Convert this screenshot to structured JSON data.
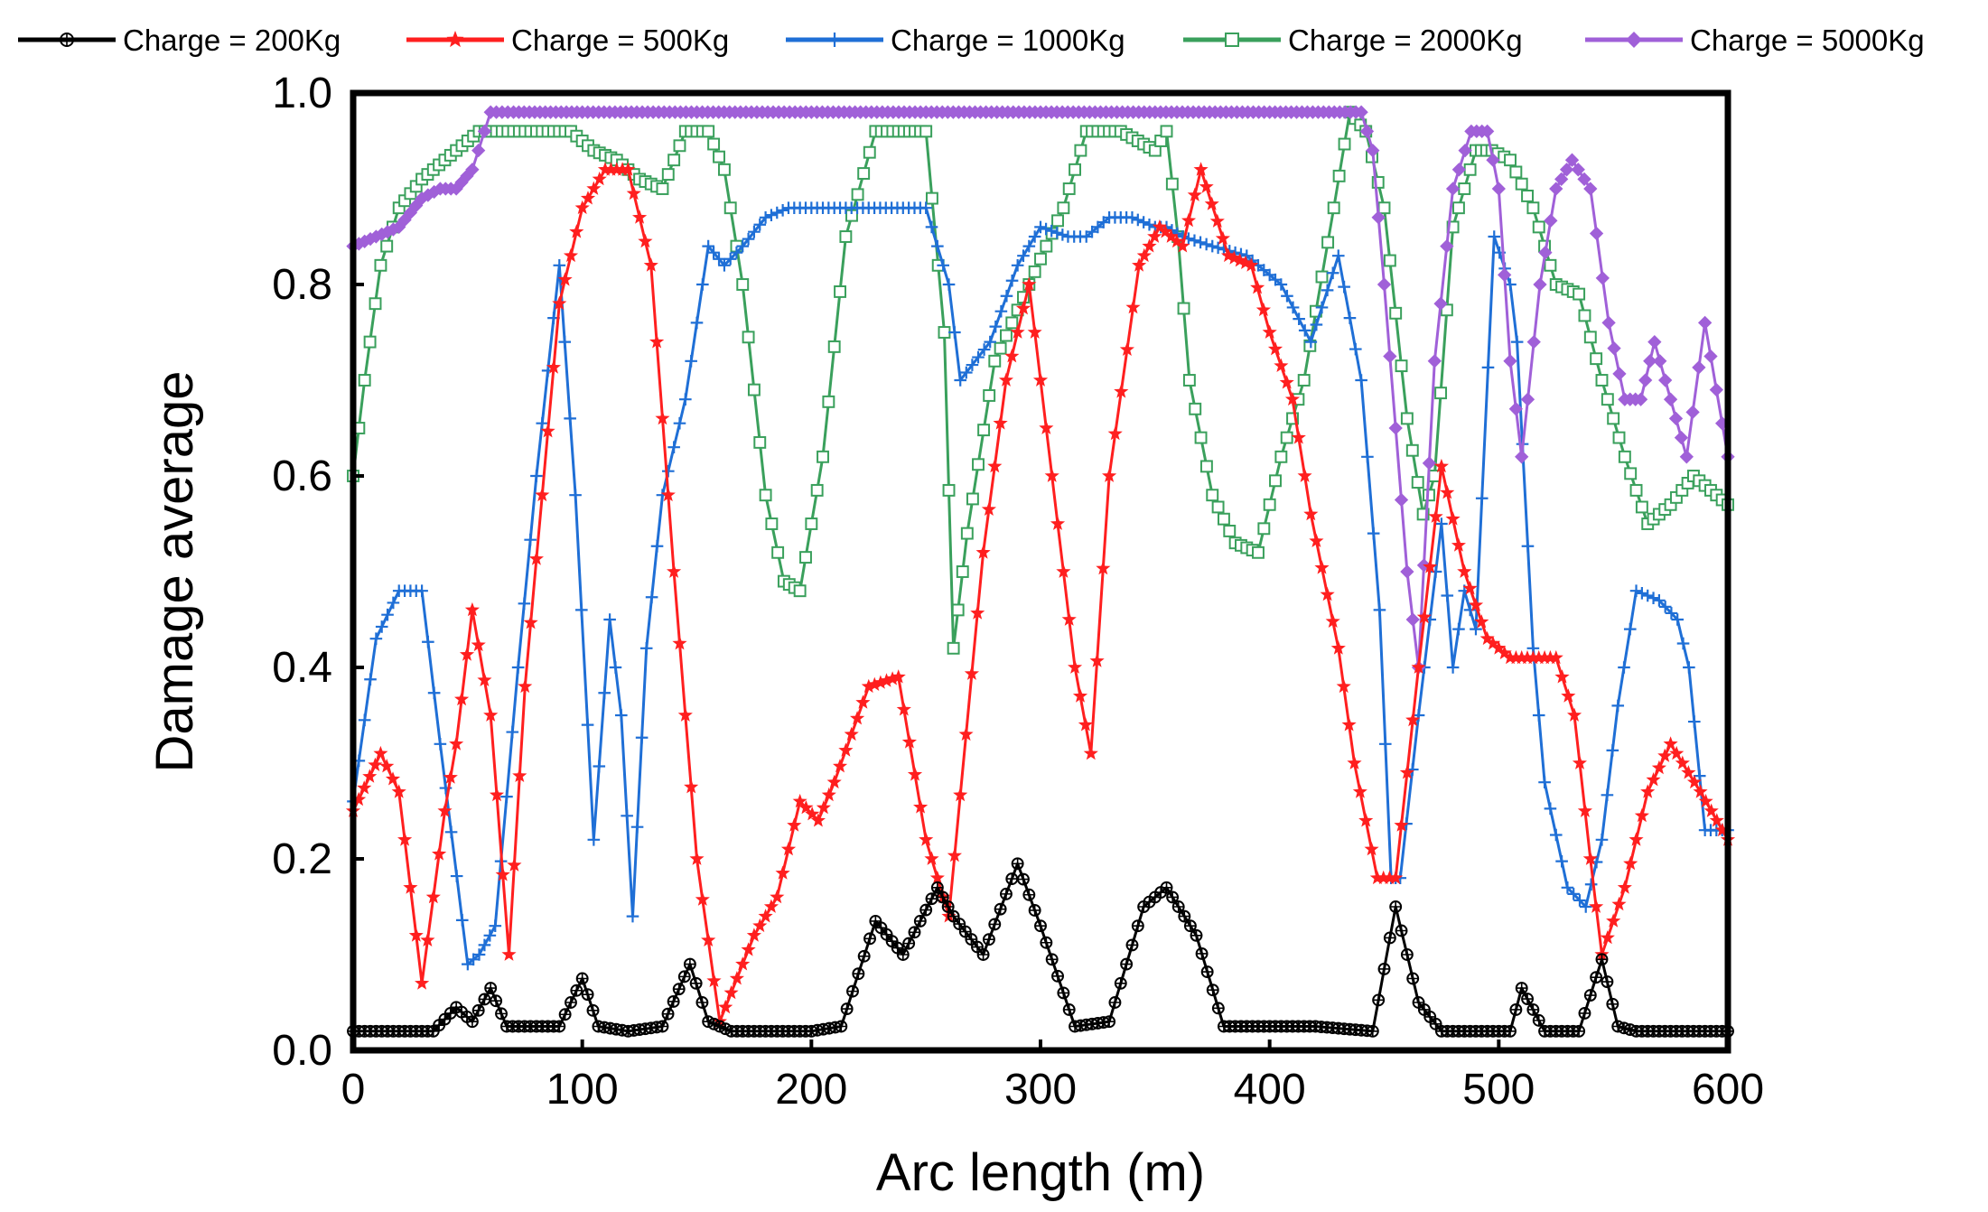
{
  "chart_data": {
    "type": "line",
    "title": "",
    "xlabel": "Arc length (m)",
    "ylabel": "Damage average",
    "xlim": [
      0,
      600
    ],
    "ylim": [
      0.0,
      1.0
    ],
    "xticks": [
      "0",
      "100",
      "200",
      "300",
      "400",
      "500",
      "600"
    ],
    "yticks": [
      "0.0",
      "0.2",
      "0.4",
      "0.6",
      "0.8",
      "1.0"
    ],
    "grid": false,
    "legend_position": "top",
    "series": [
      {
        "name": "Charge = 200Kg",
        "color": "#000000",
        "marker": "circle-plus",
        "x": [
          0,
          20,
          35,
          45,
          52,
          60,
          67,
          80,
          90,
          100,
          107,
          120,
          135,
          147,
          155,
          165,
          180,
          200,
          213,
          228,
          240,
          255,
          262,
          275,
          290,
          300,
          315,
          330,
          345,
          355,
          368,
          380,
          400,
          420,
          445,
          455,
          465,
          475,
          490,
          505,
          510,
          520,
          535,
          545,
          552,
          560,
          580,
          600
        ],
        "y": [
          0.02,
          0.02,
          0.02,
          0.045,
          0.03,
          0.065,
          0.025,
          0.025,
          0.025,
          0.075,
          0.025,
          0.02,
          0.025,
          0.09,
          0.03,
          0.02,
          0.02,
          0.02,
          0.025,
          0.135,
          0.1,
          0.17,
          0.14,
          0.1,
          0.195,
          0.13,
          0.025,
          0.03,
          0.15,
          0.17,
          0.12,
          0.025,
          0.025,
          0.025,
          0.02,
          0.15,
          0.05,
          0.02,
          0.02,
          0.02,
          0.065,
          0.02,
          0.02,
          0.095,
          0.025,
          0.02,
          0.02,
          0.02
        ]
      },
      {
        "name": "Charge = 500Kg",
        "color": "#ff1f1f",
        "marker": "star",
        "x": [
          0,
          12,
          20,
          30,
          40,
          45,
          52,
          60,
          68,
          75,
          90,
          100,
          110,
          120,
          130,
          140,
          150,
          160,
          175,
          185,
          195,
          203,
          210,
          225,
          238,
          250,
          260,
          275,
          285,
          295,
          305,
          315,
          322,
          330,
          343,
          352,
          362,
          370,
          382,
          392,
          400,
          410,
          418,
          430,
          437,
          447,
          455,
          465,
          475,
          485,
          495,
          505,
          515,
          525,
          533,
          540,
          545,
          555,
          565,
          575,
          588,
          600
        ],
        "y": [
          0.25,
          0.31,
          0.27,
          0.07,
          0.25,
          0.32,
          0.46,
          0.35,
          0.1,
          0.38,
          0.78,
          0.88,
          0.92,
          0.92,
          0.82,
          0.5,
          0.2,
          0.03,
          0.12,
          0.16,
          0.26,
          0.24,
          0.28,
          0.38,
          0.39,
          0.22,
          0.14,
          0.52,
          0.7,
          0.8,
          0.6,
          0.4,
          0.31,
          0.6,
          0.82,
          0.86,
          0.84,
          0.92,
          0.83,
          0.82,
          0.75,
          0.68,
          0.56,
          0.42,
          0.3,
          0.18,
          0.18,
          0.4,
          0.61,
          0.5,
          0.43,
          0.41,
          0.41,
          0.41,
          0.35,
          0.2,
          0.1,
          0.17,
          0.27,
          0.32,
          0.27,
          0.22
        ]
      },
      {
        "name": "Charge = 1000Kg",
        "color": "#1f6fd6",
        "marker": "plus",
        "x": [
          0,
          10,
          20,
          30,
          38,
          50,
          55,
          62,
          72,
          80,
          90,
          97,
          105,
          112,
          117,
          122,
          128,
          135,
          145,
          155,
          162,
          170,
          180,
          190,
          200,
          210,
          220,
          230,
          240,
          250,
          260,
          265,
          278,
          290,
          300,
          312,
          320,
          330,
          340,
          350,
          355,
          362,
          375,
          390,
          405,
          418,
          430,
          440,
          448,
          453,
          457,
          465,
          475,
          480,
          485,
          490,
          498,
          505,
          508,
          515,
          520,
          530,
          538,
          545,
          552,
          560,
          570,
          578,
          583,
          590,
          600
        ],
        "y": [
          0.26,
          0.43,
          0.48,
          0.48,
          0.32,
          0.09,
          0.1,
          0.13,
          0.4,
          0.6,
          0.82,
          0.58,
          0.22,
          0.45,
          0.35,
          0.14,
          0.42,
          0.58,
          0.68,
          0.84,
          0.82,
          0.84,
          0.87,
          0.88,
          0.88,
          0.88,
          0.88,
          0.88,
          0.88,
          0.88,
          0.8,
          0.7,
          0.74,
          0.82,
          0.86,
          0.85,
          0.85,
          0.87,
          0.87,
          0.86,
          0.86,
          0.85,
          0.84,
          0.83,
          0.8,
          0.74,
          0.83,
          0.7,
          0.46,
          0.18,
          0.18,
          0.35,
          0.55,
          0.4,
          0.48,
          0.44,
          0.85,
          0.8,
          0.74,
          0.42,
          0.28,
          0.17,
          0.15,
          0.22,
          0.36,
          0.48,
          0.47,
          0.45,
          0.4,
          0.23,
          0.23
        ]
      },
      {
        "name": "Charge = 2000Kg",
        "color": "#3aa05c",
        "marker": "square",
        "x": [
          0,
          5,
          12,
          20,
          30,
          40,
          55,
          65,
          80,
          95,
          105,
          115,
          125,
          135,
          145,
          155,
          162,
          170,
          180,
          188,
          195,
          205,
          215,
          228,
          238,
          250,
          258,
          262,
          268,
          280,
          295,
          310,
          320,
          335,
          350,
          355,
          360,
          365,
          375,
          385,
          395,
          405,
          415,
          428,
          435,
          442,
          450,
          460,
          467,
          472,
          480,
          490,
          497,
          505,
          515,
          525,
          535,
          545,
          555,
          565,
          575,
          585,
          600
        ],
        "y": [
          0.6,
          0.7,
          0.82,
          0.88,
          0.91,
          0.93,
          0.96,
          0.96,
          0.96,
          0.96,
          0.94,
          0.93,
          0.91,
          0.9,
          0.96,
          0.96,
          0.92,
          0.8,
          0.58,
          0.49,
          0.48,
          0.62,
          0.85,
          0.96,
          0.96,
          0.96,
          0.75,
          0.42,
          0.54,
          0.72,
          0.8,
          0.88,
          0.96,
          0.96,
          0.94,
          0.96,
          0.85,
          0.7,
          0.58,
          0.53,
          0.52,
          0.62,
          0.7,
          0.88,
          0.98,
          0.96,
          0.88,
          0.66,
          0.56,
          0.6,
          0.86,
          0.94,
          0.94,
          0.93,
          0.88,
          0.8,
          0.79,
          0.7,
          0.62,
          0.55,
          0.57,
          0.6,
          0.57
        ]
      },
      {
        "name": "Charge = 5000Kg",
        "color": "#a060d8",
        "marker": "diamond",
        "x": [
          0,
          10,
          20,
          30,
          38,
          45,
          52,
          60,
          70,
          100,
          150,
          200,
          250,
          300,
          350,
          400,
          440,
          445,
          450,
          455,
          460,
          465,
          472,
          480,
          488,
          495,
          500,
          505,
          510,
          518,
          525,
          532,
          540,
          548,
          555,
          562,
          568,
          575,
          582,
          590,
          600
        ],
        "y": [
          0.84,
          0.85,
          0.86,
          0.89,
          0.9,
          0.9,
          0.92,
          0.98,
          0.98,
          0.98,
          0.98,
          0.98,
          0.98,
          0.98,
          0.98,
          0.98,
          0.98,
          0.94,
          0.8,
          0.65,
          0.5,
          0.4,
          0.72,
          0.9,
          0.96,
          0.96,
          0.9,
          0.72,
          0.62,
          0.8,
          0.9,
          0.93,
          0.9,
          0.76,
          0.68,
          0.68,
          0.74,
          0.68,
          0.62,
          0.76,
          0.62
        ]
      }
    ]
  }
}
